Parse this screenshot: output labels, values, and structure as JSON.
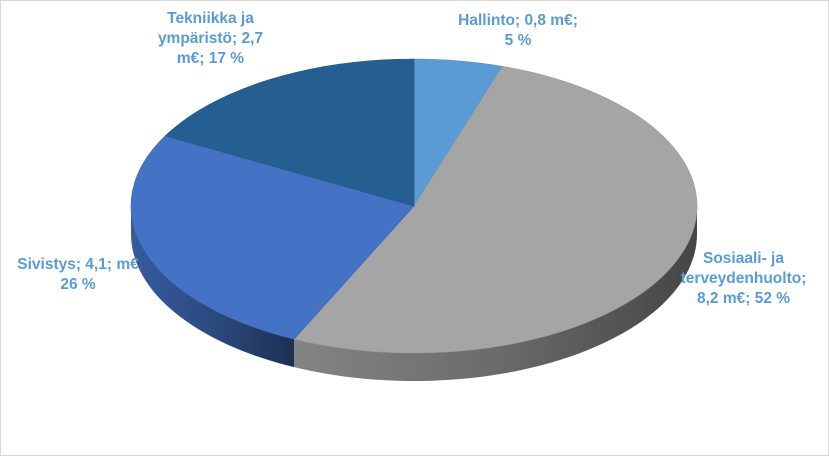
{
  "chart_data": {
    "type": "pie",
    "style": "3d",
    "title": "",
    "legend": "none",
    "label_color": "#5b9bd5",
    "slices": [
      {
        "name": "Hallinto",
        "value": 0.8,
        "percent": 5,
        "color": "#5b9bd5",
        "label_lines": [
          "Hallinto; 0,8 m€;",
          "5 %"
        ]
      },
      {
        "name": "Sosiaali- ja terveydenhuolto",
        "value": 8.2,
        "percent": 52,
        "color": "#a5a5a5",
        "label_lines": [
          "Sosiaali- ja",
          "terveydenhuolto;",
          "8,2 m€; 52 %"
        ]
      },
      {
        "name": "Sivistys",
        "value": 4.1,
        "percent": 26,
        "color": "#4472c4",
        "label_lines": [
          "Sivistys; 4,1; m€",
          "26 %"
        ]
      },
      {
        "name": "Tekniikka ja ympäristö",
        "value": 2.7,
        "percent": 17,
        "color": "#255e91",
        "label_lines": [
          "Tekniikka ja",
          "ympäristö; 2,7",
          "m€; 17 %"
        ]
      }
    ]
  }
}
